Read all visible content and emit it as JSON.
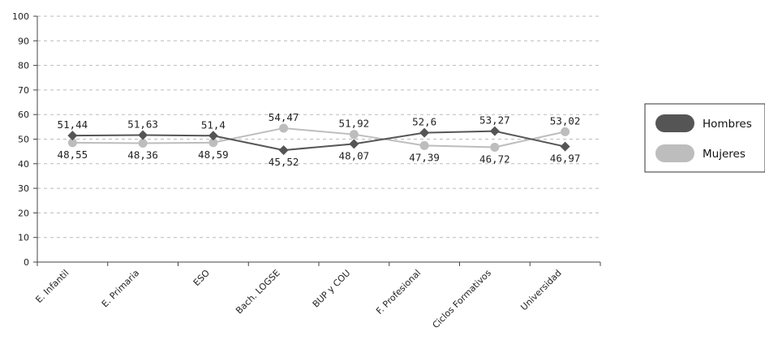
{
  "chart_data": {
    "type": "line",
    "categories": [
      "E. Infantil",
      "E. Primaria",
      "ESO",
      "Bach. LOGSE",
      "BUP y COU",
      "F. Profesional",
      "Ciclos Formativos",
      "Universidad"
    ],
    "series": [
      {
        "name": "Hombres",
        "values": [
          51.44,
          51.63,
          51.4,
          45.52,
          48.07,
          52.6,
          53.27,
          46.97
        ],
        "labels": [
          "51,44",
          "51,63",
          "51,4",
          "45,52",
          "48,07",
          "52,6",
          "53,27",
          "46,97"
        ],
        "color": "#555555",
        "marker": "diamond"
      },
      {
        "name": "Mujeres",
        "values": [
          48.55,
          48.36,
          48.59,
          54.47,
          51.92,
          47.39,
          46.72,
          53.02
        ],
        "labels": [
          "48,55",
          "48,36",
          "48,59",
          "54,47",
          "51,92",
          "47,39",
          "46,72",
          "53,02"
        ],
        "color": "#bdbdbd",
        "marker": "circle"
      }
    ],
    "ylim": [
      0,
      100
    ],
    "yticks": [
      0,
      10,
      20,
      30,
      40,
      50,
      60,
      70,
      80,
      90,
      100
    ],
    "ytick_labels": [
      "0",
      "10",
      "20",
      "30",
      "40",
      "50",
      "60",
      "70",
      "80",
      "90",
      "100"
    ],
    "grid": "horizontal dashed",
    "legend": "right"
  }
}
